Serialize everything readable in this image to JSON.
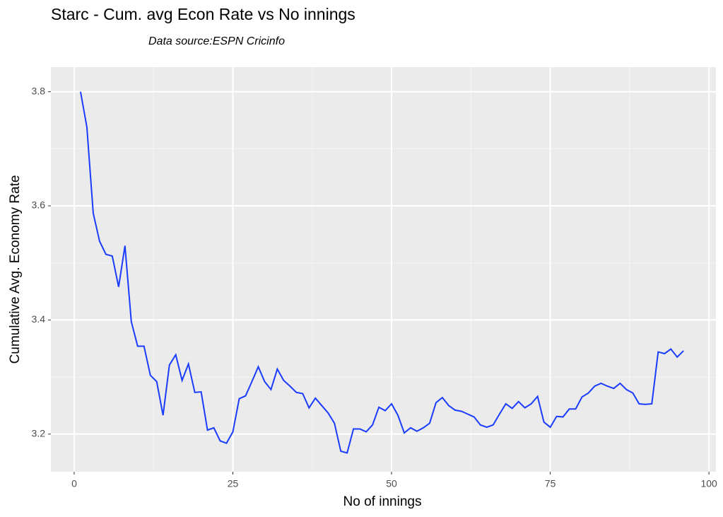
{
  "chart_data": {
    "type": "line",
    "title": "Starc - Cum. avg Econ Rate vs No innings",
    "subtitle": "Data source:ESPN Cricinfo",
    "x_label": "No of innings",
    "y_label": "Cumulative Avg. Economy Rate",
    "x": [
      1,
      2,
      3,
      4,
      5,
      6,
      7,
      8,
      9,
      10,
      11,
      12,
      13,
      14,
      15,
      16,
      17,
      18,
      19,
      20,
      21,
      22,
      23,
      24,
      25,
      26,
      27,
      28,
      29,
      30,
      31,
      32,
      33,
      34,
      35,
      36,
      37,
      38,
      39,
      40,
      41,
      42,
      43,
      44,
      45,
      46,
      47,
      48,
      49,
      50,
      51,
      52,
      53,
      54,
      55,
      56,
      57,
      58,
      59,
      60,
      61,
      62,
      63,
      64,
      65,
      66,
      67,
      68,
      69,
      70,
      71,
      72,
      73,
      74,
      75,
      76,
      77,
      78,
      79,
      80,
      81,
      82,
      83,
      84,
      85,
      86,
      87,
      88,
      89,
      90,
      91,
      92,
      93,
      94,
      95,
      96
    ],
    "series": [
      {
        "color": "#1a3cff",
        "values": [
          3.8,
          3.738,
          3.587,
          3.538,
          3.515,
          3.512,
          3.458,
          3.53,
          3.397,
          3.354,
          3.354,
          3.303,
          3.292,
          3.233,
          3.321,
          3.339,
          3.294,
          3.323,
          3.273,
          3.274,
          3.207,
          3.211,
          3.188,
          3.184,
          3.204,
          3.262,
          3.267,
          3.292,
          3.318,
          3.292,
          3.278,
          3.314,
          3.294,
          3.284,
          3.273,
          3.271,
          3.246,
          3.263,
          3.25,
          3.237,
          3.219,
          3.17,
          3.167,
          3.209,
          3.209,
          3.204,
          3.216,
          3.247,
          3.241,
          3.253,
          3.233,
          3.202,
          3.211,
          3.205,
          3.211,
          3.219,
          3.255,
          3.264,
          3.25,
          3.242,
          3.24,
          3.235,
          3.23,
          3.216,
          3.212,
          3.216,
          3.235,
          3.253,
          3.245,
          3.257,
          3.246,
          3.253,
          3.266,
          3.221,
          3.212,
          3.231,
          3.23,
          3.244,
          3.244,
          3.265,
          3.272,
          3.284,
          3.289,
          3.284,
          3.28,
          3.289,
          3.278,
          3.272,
          3.253,
          3.252,
          3.253,
          3.344,
          3.341,
          3.349,
          3.335,
          3.346
        ]
      }
    ],
    "xlim": [
      -3.67,
      101.1
    ],
    "ylim": [
      3.134,
      3.843
    ],
    "xticks": [
      0,
      25,
      50,
      75,
      100
    ],
    "yticks": [
      3.2,
      3.4,
      3.6,
      3.8
    ],
    "grid": true
  }
}
